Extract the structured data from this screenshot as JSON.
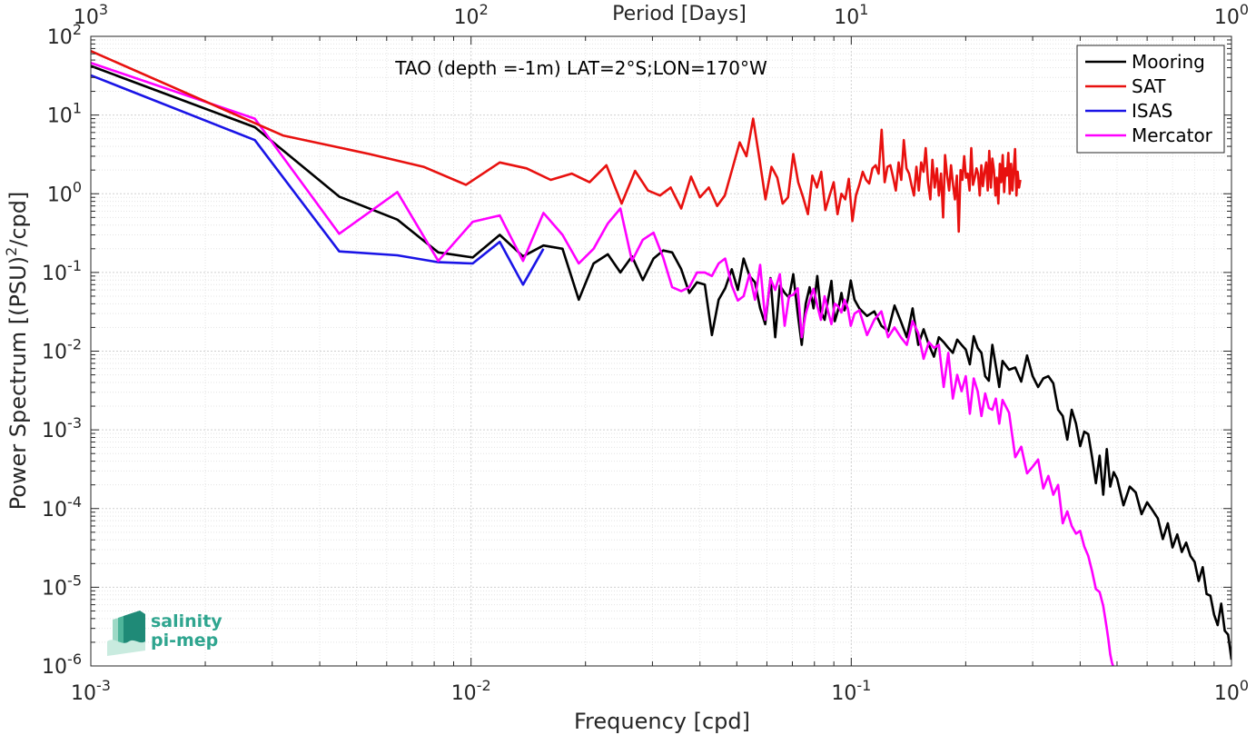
{
  "chart_data": {
    "type": "line",
    "title": "TAO (depth =-1m) LAT=2°S;LON=170°W",
    "xlabel": "Frequency [cpd]",
    "ylabel_main": "Power Spectrum [(PSU)",
    "ylabel_sup": "2",
    "ylabel_tail": "/cpd]",
    "top_xlabel": "Period [Days]",
    "x_scale": "log",
    "y_scale": "log",
    "xlim": [
      0.001,
      1
    ],
    "ylim": [
      1e-06,
      100
    ],
    "grid": true,
    "legend_placement": "top-right",
    "x_ticks": [
      {
        "base": "10",
        "exp": "-3"
      },
      {
        "base": "10",
        "exp": "-2"
      },
      {
        "base": "10",
        "exp": "-1"
      },
      {
        "base": "10",
        "exp": "0"
      }
    ],
    "top_ticks": [
      {
        "base": "10",
        "exp": "3"
      },
      {
        "base": "10",
        "exp": "2"
      },
      {
        "base": "10",
        "exp": "1"
      },
      {
        "base": "10",
        "exp": "0"
      }
    ],
    "y_ticks": [
      {
        "base": "10",
        "exp": "2"
      },
      {
        "base": "10",
        "exp": "1"
      },
      {
        "base": "10",
        "exp": "0"
      },
      {
        "base": "10",
        "exp": "-1"
      },
      {
        "base": "10",
        "exp": "-2"
      },
      {
        "base": "10",
        "exp": "-3"
      },
      {
        "base": "10",
        "exp": "-4"
      },
      {
        "base": "10",
        "exp": "-5"
      },
      {
        "base": "10",
        "exp": "-6"
      }
    ],
    "series": [
      {
        "name": "Mooring",
        "color": "#000000",
        "x": [
          0.001,
          0.0027,
          0.0045,
          0.0064,
          0.0082,
          0.0101,
          0.0119,
          0.0137,
          0.0155,
          0.0174,
          0.0192,
          0.021,
          0.0229,
          0.0247,
          0.0265,
          0.0283,
          0.0302,
          0.032,
          0.0338,
          0.0357,
          0.0375,
          0.0393,
          0.0412,
          0.043,
          0.0448,
          0.0466,
          0.0485,
          0.0503,
          0.0521,
          0.054,
          0.0558,
          0.0576,
          0.0594,
          0.0613,
          0.0631,
          0.0649,
          0.0668,
          0.0686,
          0.0704,
          0.0723,
          0.0741,
          0.0759,
          0.0777,
          0.0796,
          0.0814,
          0.0832,
          0.0851,
          0.0869,
          0.0887,
          0.0905,
          0.0924,
          0.0942,
          0.096,
          0.0979,
          0.0997,
          0.102,
          0.105,
          0.11,
          0.115,
          0.12,
          0.125,
          0.13,
          0.135,
          0.14,
          0.145,
          0.15,
          0.155,
          0.16,
          0.165,
          0.17,
          0.175,
          0.18,
          0.185,
          0.19,
          0.195,
          0.2,
          0.205,
          0.21,
          0.215,
          0.22,
          0.225,
          0.23,
          0.235,
          0.24,
          0.245,
          0.25,
          0.26,
          0.27,
          0.28,
          0.29,
          0.3,
          0.31,
          0.32,
          0.33,
          0.34,
          0.35,
          0.36,
          0.37,
          0.38,
          0.39,
          0.4,
          0.41,
          0.42,
          0.43,
          0.44,
          0.45,
          0.46,
          0.47,
          0.48,
          0.49,
          0.5,
          0.52,
          0.54,
          0.56,
          0.58,
          0.6,
          0.62,
          0.64,
          0.66,
          0.68,
          0.7,
          0.72,
          0.74,
          0.76,
          0.78,
          0.8,
          0.82,
          0.84,
          0.86,
          0.88,
          0.9,
          0.92,
          0.94,
          0.96,
          0.98,
          1.0
        ],
        "y": [
          42,
          7.0,
          0.92,
          0.47,
          0.18,
          0.155,
          0.3,
          0.16,
          0.22,
          0.2,
          0.045,
          0.13,
          0.17,
          0.1,
          0.16,
          0.08,
          0.15,
          0.19,
          0.18,
          0.11,
          0.055,
          0.075,
          0.07,
          0.016,
          0.045,
          0.063,
          0.11,
          0.06,
          0.15,
          0.09,
          0.075,
          0.035,
          0.022,
          0.085,
          0.015,
          0.068,
          0.055,
          0.048,
          0.095,
          0.03,
          0.012,
          0.04,
          0.065,
          0.035,
          0.09,
          0.032,
          0.025,
          0.045,
          0.078,
          0.024,
          0.034,
          0.055,
          0.033,
          0.045,
          0.079,
          0.045,
          0.035,
          0.028,
          0.032,
          0.021,
          0.018,
          0.038,
          0.024,
          0.015,
          0.035,
          0.012,
          0.019,
          0.012,
          0.0085,
          0.015,
          0.013,
          0.011,
          0.0095,
          0.014,
          0.012,
          0.0105,
          0.0068,
          0.0155,
          0.011,
          0.0095,
          0.0048,
          0.0042,
          0.012,
          0.0065,
          0.0035,
          0.0075,
          0.0058,
          0.0062,
          0.0041,
          0.0088,
          0.0048,
          0.0035,
          0.0045,
          0.0048,
          0.0039,
          0.0018,
          0.0015,
          0.00075,
          0.0018,
          0.0012,
          0.00062,
          0.00095,
          0.00088,
          0.00045,
          0.00021,
          0.00047,
          0.00015,
          0.00057,
          0.00019,
          0.00029,
          0.00024,
          0.00011,
          0.00019,
          0.00016,
          8.5e-05,
          0.00012,
          9.5e-05,
          7.5e-05,
          4.1e-05,
          6.5e-05,
          3.2e-05,
          4.7e-05,
          2.8e-05,
          3.7e-05,
          2.5e-05,
          2.1e-05,
          1.2e-05,
          1.8e-05,
          8.2e-06,
          7.8e-06,
          4.5e-06,
          3.3e-06,
          6.2e-06,
          2.8e-06,
          2.5e-06,
          1.2e-06
        ]
      },
      {
        "name": "SAT",
        "color": "#e8110f",
        "x": [
          0.001,
          0.0032,
          0.0054,
          0.0075,
          0.0097,
          0.0119,
          0.014,
          0.0162,
          0.0184,
          0.0205,
          0.0227,
          0.0249,
          0.027,
          0.0292,
          0.0314,
          0.0335,
          0.0357,
          0.0379,
          0.04,
          0.0422,
          0.0444,
          0.0465,
          0.0487,
          0.0509,
          0.053,
          0.0552,
          0.0574,
          0.0595,
          0.0617,
          0.0639,
          0.066,
          0.0682,
          0.0704,
          0.0725,
          0.0747,
          0.0769,
          0.079,
          0.0812,
          0.0834,
          0.0855,
          0.0877,
          0.0899,
          0.092,
          0.0942,
          0.0964,
          0.0985,
          0.1007,
          0.1029,
          0.105,
          0.1072,
          0.1094,
          0.1115,
          0.1137,
          0.1159,
          0.118,
          0.1202,
          0.1224,
          0.1245,
          0.1267,
          0.1289,
          0.131,
          0.1332,
          0.1354,
          0.1375,
          0.1397,
          0.1419,
          0.144,
          0.1462,
          0.1484,
          0.1505,
          0.1527,
          0.1549,
          0.157,
          0.1592,
          0.1614,
          0.1635,
          0.1657,
          0.1679,
          0.17,
          0.1722,
          0.1744,
          0.1765,
          0.1787,
          0.1809,
          0.183,
          0.1852,
          0.1874,
          0.1895,
          0.1917,
          0.1939,
          0.196,
          0.1982,
          0.2004,
          0.2025,
          0.2047,
          0.2069,
          0.209,
          0.2112,
          0.2134,
          0.2155,
          0.2177,
          0.2199,
          0.222,
          0.2242,
          0.2264,
          0.2285,
          0.2307,
          0.2329,
          0.235,
          0.2372,
          0.2394,
          0.2415,
          0.2437,
          0.2459,
          0.248,
          0.2502,
          0.2524,
          0.2545,
          0.2567,
          0.2589,
          0.261,
          0.2632,
          0.2654,
          0.2675,
          0.2697,
          0.2719,
          0.274,
          0.2762,
          0.2784
        ],
        "y": [
          65,
          5.5,
          3.2,
          2.2,
          1.3,
          2.5,
          2.1,
          1.5,
          1.8,
          1.4,
          2.3,
          0.75,
          1.95,
          1.1,
          0.95,
          1.2,
          0.65,
          1.65,
          0.9,
          1.2,
          0.7,
          0.95,
          2.1,
          4.5,
          3.0,
          9.0,
          2.7,
          0.85,
          2.2,
          1.6,
          0.75,
          0.9,
          3.2,
          1.4,
          0.9,
          0.55,
          1.7,
          1.2,
          1.9,
          0.62,
          0.95,
          1.4,
          0.55,
          1.0,
          0.85,
          1.55,
          0.45,
          0.95,
          1.3,
          1.9,
          1.5,
          1.35,
          2.1,
          2.3,
          1.8,
          6.5,
          1.4,
          2.2,
          2.3,
          1.6,
          1.1,
          2.5,
          1.5,
          4.8,
          2.1,
          1.8,
          1.3,
          0.95,
          2.2,
          1.1,
          2.5,
          1.9,
          3.8,
          1.4,
          0.85,
          2.7,
          1.2,
          2.1,
          0.95,
          1.8,
          0.5,
          3.1,
          1.7,
          1.1,
          2.3,
          1.3,
          0.85,
          1.7,
          0.33,
          2.0,
          1.5,
          3.0,
          1.6,
          1.8,
          1.1,
          3.8,
          1.3,
          1.6,
          2.1,
          1.8,
          0.95,
          2.3,
          1.25,
          1.9,
          2.5,
          1.1,
          3.5,
          1.2,
          2.8,
          2.0,
          0.95,
          1.6,
          0.75,
          2.4,
          1.4,
          3.1,
          1.05,
          2.1,
          1.7,
          3.3,
          1.0,
          2.4,
          1.1,
          2.0,
          3.7,
          0.95,
          1.9,
          1.2,
          1.5
        ]
      },
      {
        "name": "ISAS",
        "color": "#1a14e6",
        "x": [
          0.001,
          0.0027,
          0.0045,
          0.0064,
          0.0082,
          0.0101,
          0.0119,
          0.0137,
          0.0155
        ],
        "y": [
          32,
          4.8,
          0.185,
          0.165,
          0.135,
          0.13,
          0.245,
          0.07,
          0.2
        ]
      },
      {
        "name": "Mercator",
        "color": "#ff00ff",
        "x": [
          0.001,
          0.0027,
          0.0045,
          0.0064,
          0.0082,
          0.0101,
          0.0119,
          0.0137,
          0.0155,
          0.0174,
          0.0192,
          0.021,
          0.0229,
          0.0247,
          0.0265,
          0.0283,
          0.0302,
          0.032,
          0.0338,
          0.0357,
          0.0375,
          0.0393,
          0.0412,
          0.043,
          0.0448,
          0.0466,
          0.0485,
          0.0503,
          0.0521,
          0.054,
          0.0558,
          0.0576,
          0.0594,
          0.0613,
          0.0631,
          0.0649,
          0.0668,
          0.0686,
          0.0704,
          0.0723,
          0.0741,
          0.0759,
          0.0777,
          0.0796,
          0.0814,
          0.0832,
          0.0851,
          0.0869,
          0.0887,
          0.0905,
          0.0924,
          0.0942,
          0.096,
          0.0979,
          0.0997,
          0.102,
          0.105,
          0.11,
          0.115,
          0.12,
          0.125,
          0.13,
          0.135,
          0.14,
          0.145,
          0.15,
          0.155,
          0.16,
          0.165,
          0.17,
          0.175,
          0.18,
          0.185,
          0.19,
          0.195,
          0.2,
          0.205,
          0.21,
          0.215,
          0.22,
          0.225,
          0.23,
          0.235,
          0.24,
          0.245,
          0.25,
          0.26,
          0.27,
          0.28,
          0.29,
          0.3,
          0.31,
          0.32,
          0.33,
          0.34,
          0.35,
          0.36,
          0.37,
          0.38,
          0.39,
          0.4,
          0.41,
          0.42,
          0.43,
          0.44,
          0.45,
          0.46,
          0.47,
          0.475,
          0.48,
          0.485,
          0.49,
          0.495,
          0.5
        ],
        "y": [
          46,
          9.0,
          0.31,
          1.05,
          0.14,
          0.44,
          0.53,
          0.14,
          0.57,
          0.3,
          0.13,
          0.2,
          0.42,
          0.65,
          0.14,
          0.26,
          0.32,
          0.155,
          0.065,
          0.058,
          0.065,
          0.1,
          0.1,
          0.09,
          0.13,
          0.15,
          0.068,
          0.044,
          0.05,
          0.095,
          0.045,
          0.125,
          0.025,
          0.083,
          0.06,
          0.095,
          0.021,
          0.05,
          0.052,
          0.063,
          0.015,
          0.03,
          0.044,
          0.062,
          0.038,
          0.025,
          0.05,
          0.032,
          0.022,
          0.04,
          0.037,
          0.031,
          0.045,
          0.035,
          0.021,
          0.03,
          0.033,
          0.016,
          0.025,
          0.032,
          0.015,
          0.02,
          0.015,
          0.012,
          0.024,
          0.017,
          0.008,
          0.013,
          0.011,
          0.012,
          0.0035,
          0.0095,
          0.0025,
          0.005,
          0.0031,
          0.0048,
          0.0016,
          0.0045,
          0.0031,
          0.0015,
          0.0029,
          0.0019,
          0.0018,
          0.0025,
          0.0012,
          0.0024,
          0.00165,
          0.00045,
          0.00061,
          0.00028,
          0.00034,
          0.00042,
          0.00018,
          0.00026,
          0.00015,
          0.0002,
          6.5e-05,
          9.2e-05,
          6e-05,
          4.8e-05,
          5.2e-05,
          3.3e-05,
          2.5e-05,
          1.6e-05,
          9.5e-06,
          8.7e-06,
          5.8e-06,
          3e-06,
          2.1e-06,
          1.4e-06,
          1.1e-06,
          9.5e-07,
          8e-07,
          7e-07
        ]
      }
    ]
  },
  "logo": {
    "line1": "salinity",
    "line2": "pi-mep"
  }
}
